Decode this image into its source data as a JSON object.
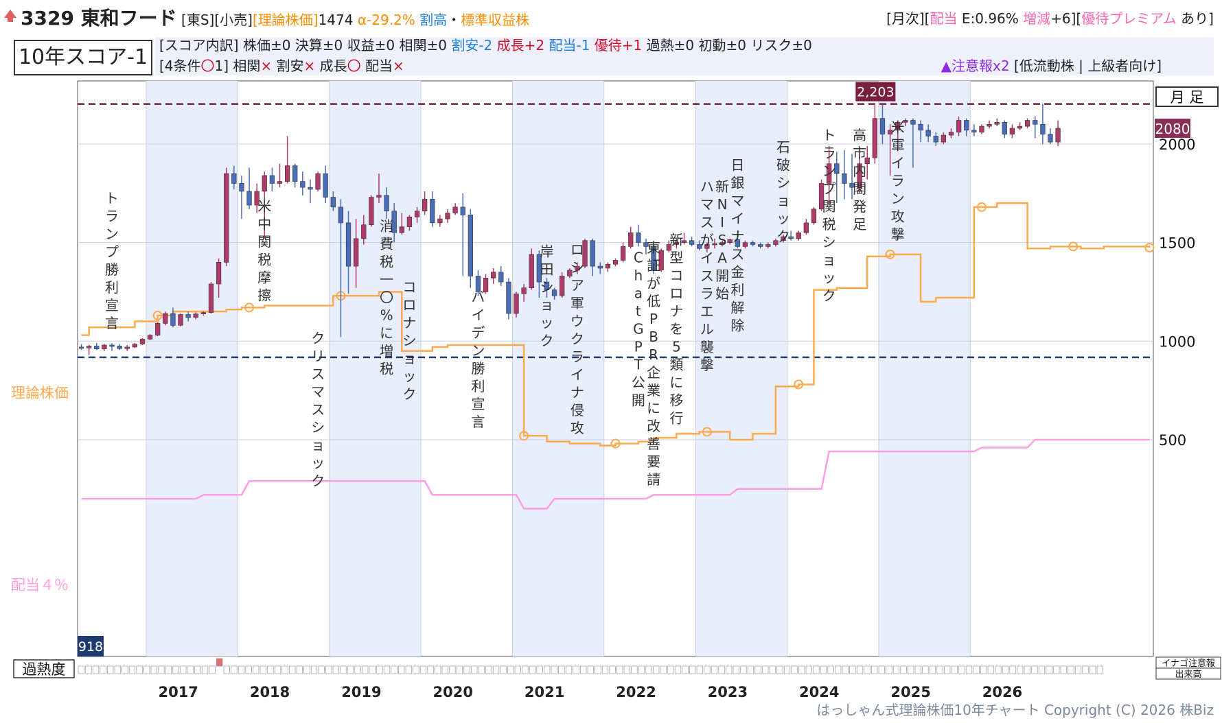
{
  "header": {
    "code_name": "3329 東和フード",
    "market": "[東S]",
    "sector": "[小売]",
    "theory_label": "[理論株価]",
    "theory_value": "1474",
    "alpha": "α-29.2%",
    "valuation": "割高",
    "dot": "・",
    "stock_type": "標準収益株",
    "right_open": "[月次][",
    "dividend_label": "配当",
    "dividend_value": " E:0.96% ",
    "change_label": "増減",
    "change_value": "+6][",
    "yutai_label": "優待プレミアム",
    "yutai_value": " あり]"
  },
  "score": {
    "label": "10年スコア-1",
    "breakdown_prefix": "[スコア内訳] 株価±0 決算±0 収益±0 相関±0 ",
    "cheap": "割安-2",
    "growth": "成長+2",
    "dividend": "配当-1",
    "yutai": "優待+1",
    "breakdown_suffix": " 過熱±0 初動±0 リスク±0",
    "conditions_prefix": "[4条件",
    "conditions_mark": "〇",
    "conditions_count": "1] ",
    "cond1_label": "相関",
    "cond1_mark": "×",
    "cond2_label": " 割安",
    "cond2_mark": "×",
    "cond3_label": " 成長",
    "cond3_mark": "〇",
    "cond4_label": " 配当",
    "cond4_mark": "×",
    "warning": "▲注意報x2",
    "tags": " [低流動株 | 上級者向け]"
  },
  "chart_data": {
    "type": "candlestick",
    "title": "",
    "period_label": "月 足",
    "ylim": [
      -600,
      2320
    ],
    "yticks": [
      500,
      1000,
      1500,
      2000
    ],
    "x_years": [
      "2017",
      "2018",
      "2019",
      "2020",
      "2021",
      "2022",
      "2023",
      "2024",
      "2025",
      "2026"
    ],
    "high_label": "2,203",
    "high_value": 2203,
    "low_label": "918",
    "low_value": 918,
    "current_label": "2080",
    "current_value": 2080,
    "theory_line_label": "理論株価",
    "dividend_line_label": "配当４％",
    "overheat_label": "過熱度",
    "volume_legend_1": "イナゴ注意報",
    "volume_legend_2": "出来高",
    "candles": [
      [
        970,
        985,
        955,
        965
      ],
      [
        965,
        980,
        930,
        975
      ],
      [
        975,
        990,
        955,
        960
      ],
      [
        960,
        985,
        950,
        980
      ],
      [
        980,
        990,
        950,
        975
      ],
      [
        975,
        985,
        955,
        962
      ],
      [
        962,
        980,
        950,
        970
      ],
      [
        970,
        990,
        965,
        985
      ],
      [
        985,
        1015,
        980,
        1010
      ],
      [
        1010,
        1035,
        1005,
        1030
      ],
      [
        1030,
        1095,
        1025,
        1090
      ],
      [
        1090,
        1150,
        1080,
        1140
      ],
      [
        1140,
        1170,
        1070,
        1080
      ],
      [
        1080,
        1140,
        1075,
        1135
      ],
      [
        1135,
        1150,
        1100,
        1120
      ],
      [
        1120,
        1145,
        1110,
        1138
      ],
      [
        1138,
        1150,
        1130,
        1145
      ],
      [
        1145,
        1300,
        1140,
        1290
      ],
      [
        1290,
        1420,
        1220,
        1400
      ],
      [
        1400,
        1880,
        1380,
        1850
      ],
      [
        1850,
        1890,
        1770,
        1800
      ],
      [
        1800,
        1840,
        1620,
        1760
      ],
      [
        1760,
        1880,
        1670,
        1690
      ],
      [
        1690,
        1800,
        1650,
        1760
      ],
      [
        1760,
        1860,
        1520,
        1840
      ],
      [
        1840,
        1880,
        1760,
        1800
      ],
      [
        1800,
        1900,
        1780,
        1810
      ],
      [
        1810,
        2040,
        1800,
        1890
      ],
      [
        1890,
        1900,
        1780,
        1810
      ],
      [
        1810,
        1860,
        1740,
        1780
      ],
      [
        1780,
        1820,
        1700,
        1770
      ],
      [
        1770,
        1860,
        1760,
        1850
      ],
      [
        1850,
        1890,
        1700,
        1730
      ],
      [
        1730,
        1760,
        1660,
        1680
      ],
      [
        1680,
        1720,
        1020,
        1600
      ],
      [
        1600,
        1660,
        1240,
        1380
      ],
      [
        1380,
        1620,
        1270,
        1520
      ],
      [
        1520,
        1640,
        1490,
        1590
      ],
      [
        1590,
        1740,
        1580,
        1730
      ],
      [
        1730,
        1850,
        1700,
        1740
      ],
      [
        1740,
        1780,
        1620,
        1660
      ],
      [
        1660,
        1700,
        1500,
        1550
      ],
      [
        1550,
        1650,
        1540,
        1580
      ],
      [
        1580,
        1640,
        1560,
        1630
      ],
      [
        1630,
        1680,
        1600,
        1660
      ],
      [
        1660,
        1760,
        1640,
        1720
      ],
      [
        1720,
        1760,
        1580,
        1600
      ],
      [
        1600,
        1640,
        1580,
        1620
      ],
      [
        1620,
        1670,
        1600,
        1650
      ],
      [
        1650,
        1700,
        1640,
        1680
      ],
      [
        1680,
        1750,
        1330,
        1640
      ],
      [
        1640,
        1670,
        1270,
        1330
      ],
      [
        1330,
        1360,
        1230,
        1250
      ],
      [
        1250,
        1340,
        1240,
        1320
      ],
      [
        1320,
        1370,
        1290,
        1350
      ],
      [
        1350,
        1380,
        1280,
        1300
      ],
      [
        1300,
        1320,
        1110,
        1140
      ],
      [
        1140,
        1250,
        1120,
        1240
      ],
      [
        1240,
        1290,
        1200,
        1270
      ],
      [
        1270,
        1470,
        1260,
        1440
      ],
      [
        1440,
        1460,
        1220,
        1300
      ],
      [
        1300,
        1320,
        1220,
        1260
      ],
      [
        1260,
        1270,
        1210,
        1230
      ],
      [
        1230,
        1350,
        1220,
        1330
      ],
      [
        1330,
        1370,
        1320,
        1360
      ],
      [
        1360,
        1400,
        1340,
        1380
      ],
      [
        1380,
        1520,
        1370,
        1510
      ],
      [
        1510,
        1520,
        1330,
        1380
      ],
      [
        1380,
        1400,
        1340,
        1370
      ],
      [
        1370,
        1400,
        1350,
        1390
      ],
      [
        1390,
        1420,
        1380,
        1410
      ],
      [
        1410,
        1500,
        1400,
        1480
      ],
      [
        1480,
        1580,
        1470,
        1550
      ],
      [
        1550,
        1590,
        1480,
        1500
      ],
      [
        1500,
        1520,
        1440,
        1480
      ],
      [
        1480,
        1490,
        1340,
        1360
      ],
      [
        1360,
        1470,
        1350,
        1460
      ],
      [
        1460,
        1510,
        1450,
        1490
      ],
      [
        1490,
        1520,
        1470,
        1500
      ],
      [
        1500,
        1550,
        1490,
        1510
      ],
      [
        1510,
        1530,
        1480,
        1490
      ],
      [
        1490,
        1510,
        1460,
        1470
      ],
      [
        1470,
        1500,
        1450,
        1490
      ],
      [
        1490,
        1520,
        1470,
        1495
      ],
      [
        1495,
        1510,
        1480,
        1500
      ],
      [
        1500,
        1520,
        1490,
        1515
      ],
      [
        1515,
        1550,
        1470,
        1480
      ],
      [
        1480,
        1510,
        1470,
        1500
      ],
      [
        1500,
        1510,
        1480,
        1490
      ],
      [
        1490,
        1500,
        1470,
        1480
      ],
      [
        1480,
        1500,
        1470,
        1490
      ],
      [
        1490,
        1520,
        1480,
        1510
      ],
      [
        1510,
        1540,
        1500,
        1530
      ],
      [
        1530,
        1560,
        1510,
        1520
      ],
      [
        1520,
        1560,
        1510,
        1550
      ],
      [
        1550,
        1620,
        1540,
        1600
      ],
      [
        1600,
        1680,
        1590,
        1670
      ],
      [
        1670,
        1820,
        1660,
        1800
      ],
      [
        1800,
        1990,
        1680,
        1900
      ],
      [
        1900,
        1960,
        1700,
        1850
      ],
      [
        1850,
        1970,
        1720,
        1800
      ],
      [
        1800,
        1950,
        1720,
        1780
      ],
      [
        1780,
        1940,
        1750,
        1900
      ],
      [
        1900,
        1990,
        1820,
        1930
      ],
      [
        1930,
        2203,
        1900,
        2130
      ],
      [
        2130,
        2203,
        2000,
        2050
      ],
      [
        2050,
        2100,
        1840,
        2070
      ],
      [
        2070,
        2120,
        1990,
        2110
      ],
      [
        2110,
        2130,
        2090,
        2120
      ],
      [
        2120,
        2130,
        1880,
        2100
      ],
      [
        2100,
        2120,
        2010,
        2070
      ],
      [
        2070,
        2100,
        2010,
        2040
      ],
      [
        2040,
        2060,
        1990,
        2010
      ],
      [
        2010,
        2060,
        2000,
        2045
      ],
      [
        2045,
        2080,
        2030,
        2060
      ],
      [
        2060,
        2140,
        2040,
        2120
      ],
      [
        2120,
        2130,
        2040,
        2070
      ],
      [
        2070,
        2100,
        2040,
        2060
      ],
      [
        2060,
        2100,
        2050,
        2090
      ],
      [
        2090,
        2120,
        2080,
        2100
      ],
      [
        2100,
        2130,
        2090,
        2110
      ],
      [
        2110,
        2120,
        2030,
        2050
      ],
      [
        2050,
        2100,
        2030,
        2080
      ],
      [
        2080,
        2110,
        2070,
        2090
      ],
      [
        2090,
        2130,
        2080,
        2120
      ],
      [
        2120,
        2140,
        2030,
        2100
      ],
      [
        2100,
        2203,
        2000,
        2050
      ],
      [
        2050,
        2080,
        2000,
        2010
      ],
      [
        2010,
        2120,
        1990,
        2080
      ]
    ],
    "theory_price": [
      [
        0,
        1030
      ],
      [
        1,
        1070
      ],
      [
        2,
        1070
      ],
      [
        3,
        1070
      ],
      [
        4,
        1070
      ],
      [
        5,
        1070
      ],
      [
        6,
        1070
      ],
      [
        7,
        1100
      ],
      [
        8,
        1100
      ],
      [
        9,
        1100
      ],
      [
        10,
        1130
      ],
      [
        11,
        1130
      ],
      [
        12,
        1150
      ],
      [
        13,
        1150
      ],
      [
        14,
        1150
      ],
      [
        15,
        1150
      ],
      [
        16,
        1150
      ],
      [
        17,
        1150
      ],
      [
        18,
        1150
      ],
      [
        19,
        1160
      ],
      [
        20,
        1160
      ],
      [
        21,
        1170
      ],
      [
        22,
        1170
      ],
      [
        23,
        1170
      ],
      [
        24,
        1180
      ],
      [
        25,
        1180
      ],
      [
        26,
        1180
      ],
      [
        27,
        1180
      ],
      [
        28,
        1180
      ],
      [
        29,
        1180
      ],
      [
        30,
        1180
      ],
      [
        31,
        1180
      ],
      [
        32,
        1180
      ],
      [
        33,
        1230
      ],
      [
        34,
        1230
      ],
      [
        35,
        1230
      ],
      [
        36,
        1230
      ],
      [
        37,
        1230
      ],
      [
        38,
        1230
      ],
      [
        39,
        1250
      ],
      [
        40,
        1250
      ],
      [
        41,
        1250
      ],
      [
        42,
        950
      ],
      [
        43,
        950
      ],
      [
        44,
        950
      ],
      [
        45,
        950
      ],
      [
        46,
        970
      ],
      [
        47,
        970
      ],
      [
        48,
        980
      ],
      [
        49,
        980
      ],
      [
        50,
        980
      ],
      [
        51,
        980
      ],
      [
        52,
        980
      ],
      [
        53,
        980
      ],
      [
        54,
        980
      ],
      [
        55,
        980
      ],
      [
        56,
        980
      ],
      [
        57,
        980
      ],
      [
        58,
        520
      ],
      [
        59,
        520
      ],
      [
        60,
        520
      ],
      [
        61,
        490
      ],
      [
        62,
        490
      ],
      [
        63,
        490
      ],
      [
        64,
        480
      ],
      [
        65,
        480
      ],
      [
        66,
        480
      ],
      [
        67,
        480
      ],
      [
        68,
        470
      ],
      [
        69,
        470
      ],
      [
        70,
        480
      ],
      [
        71,
        480
      ],
      [
        72,
        480
      ],
      [
        73,
        490
      ],
      [
        74,
        490
      ],
      [
        75,
        510
      ],
      [
        76,
        510
      ],
      [
        77,
        510
      ],
      [
        78,
        530
      ],
      [
        79,
        530
      ],
      [
        80,
        530
      ],
      [
        81,
        540
      ],
      [
        82,
        540
      ],
      [
        83,
        540
      ],
      [
        84,
        540
      ],
      [
        85,
        500
      ],
      [
        86,
        500
      ],
      [
        87,
        500
      ],
      [
        88,
        530
      ],
      [
        89,
        530
      ],
      [
        90,
        530
      ],
      [
        91,
        770
      ],
      [
        92,
        770
      ],
      [
        93,
        770
      ],
      [
        94,
        780
      ],
      [
        95,
        780
      ],
      [
        96,
        1260
      ],
      [
        97,
        1260
      ],
      [
        98,
        1260
      ],
      [
        99,
        1270
      ],
      [
        100,
        1270
      ],
      [
        101,
        1270
      ],
      [
        102,
        1270
      ],
      [
        103,
        1430
      ],
      [
        104,
        1430
      ],
      [
        105,
        1430
      ],
      [
        106,
        1440
      ],
      [
        107,
        1440
      ],
      [
        108,
        1440
      ],
      [
        109,
        1440
      ],
      [
        110,
        1200
      ],
      [
        111,
        1200
      ],
      [
        112,
        1220
      ],
      [
        113,
        1220
      ],
      [
        114,
        1220
      ],
      [
        115,
        1220
      ],
      [
        116,
        1220
      ],
      [
        117,
        1680
      ],
      [
        118,
        1680
      ],
      [
        119,
        1680
      ],
      [
        120,
        1700
      ],
      [
        121,
        1700
      ],
      [
        122,
        1700
      ],
      [
        123,
        1700
      ],
      [
        124,
        1470
      ],
      [
        125,
        1470
      ],
      [
        126,
        1470
      ],
      [
        127,
        1480
      ],
      [
        128,
        1480
      ],
      [
        129,
        1480
      ],
      [
        130,
        1480
      ],
      [
        131,
        1470
      ],
      [
        132,
        1470
      ],
      [
        133,
        1470
      ],
      [
        134,
        1480
      ],
      [
        135,
        1480
      ],
      [
        136,
        1480
      ],
      [
        137,
        1480
      ],
      [
        138,
        1480
      ],
      [
        139,
        1480
      ],
      [
        140,
        1474
      ]
    ],
    "theory_markers": [
      10,
      22,
      34,
      58,
      70,
      82,
      94,
      106,
      118,
      130,
      140
    ],
    "dividend_line": [
      [
        0,
        200
      ],
      [
        15,
        200
      ],
      [
        16,
        220
      ],
      [
        21,
        220
      ],
      [
        22,
        290
      ],
      [
        45,
        290
      ],
      [
        46,
        220
      ],
      [
        57,
        220
      ],
      [
        58,
        150
      ],
      [
        61,
        150
      ],
      [
        62,
        200
      ],
      [
        74,
        200
      ],
      [
        75,
        220
      ],
      [
        85,
        220
      ],
      [
        86,
        250
      ],
      [
        97,
        250
      ],
      [
        98,
        440
      ],
      [
        117,
        440
      ],
      [
        118,
        460
      ],
      [
        124,
        460
      ],
      [
        125,
        500
      ],
      [
        140,
        500
      ]
    ],
    "events": [
      {
        "label": "トランプ勝利宣言",
        "i": 4,
        "y": 1700
      },
      {
        "label": "米中関税摩擦",
        "i": 24,
        "y": 1660
      },
      {
        "label": "クリスマスショック",
        "i": 31,
        "y": 990
      },
      {
        "label": "消費税一〇%に増税",
        "i": 40,
        "y": 1560
      },
      {
        "label": "コロナショック",
        "i": 43,
        "y": 1250
      },
      {
        "label": "バイデン勝利宣言",
        "i": 52,
        "y": 1200
      },
      {
        "label": "岸田ショック",
        "i": 61,
        "y": 1430
      },
      {
        "label": "ロシア軍ウクライナ侵攻",
        "i": 65,
        "y": 1440
      },
      {
        "label": "ChatGPT公開",
        "i": 73,
        "y": 1400
      },
      {
        "label": "東証が低PBR企業に改善要請",
        "i": 75,
        "y": 1450
      },
      {
        "label": "新型コロナを5類に移行",
        "i": 78,
        "y": 1490
      },
      {
        "label": "ハマスがイスラエル襲撃",
        "i": 82,
        "y": 1760
      },
      {
        "label": "新NISA開始",
        "i": 84,
        "y": 1760
      },
      {
        "label": "日銀マイナス金利解除",
        "i": 86,
        "y": 1870
      },
      {
        "label": "石破ショック",
        "i": 92,
        "y": 1960
      },
      {
        "label": "トランプ関税ショック",
        "i": 98,
        "y": 2020
      },
      {
        "label": "高市内閣発足",
        "i": 102,
        "y": 2020
      },
      {
        "label": "米軍イラン攻撃",
        "i": 107,
        "y": 2060
      }
    ],
    "colors": {
      "up": "#b03a6a",
      "down": "#4a6db8",
      "theory": "#ffa94d",
      "dividend": "#ff9de0",
      "hline_high": "#7a1f3d",
      "hline_low": "#1f3a6e",
      "band": "#e8eefb"
    }
  },
  "footer": "はっしゃん式理論株価10年チャート Copyright (C) 2026 株Biz"
}
